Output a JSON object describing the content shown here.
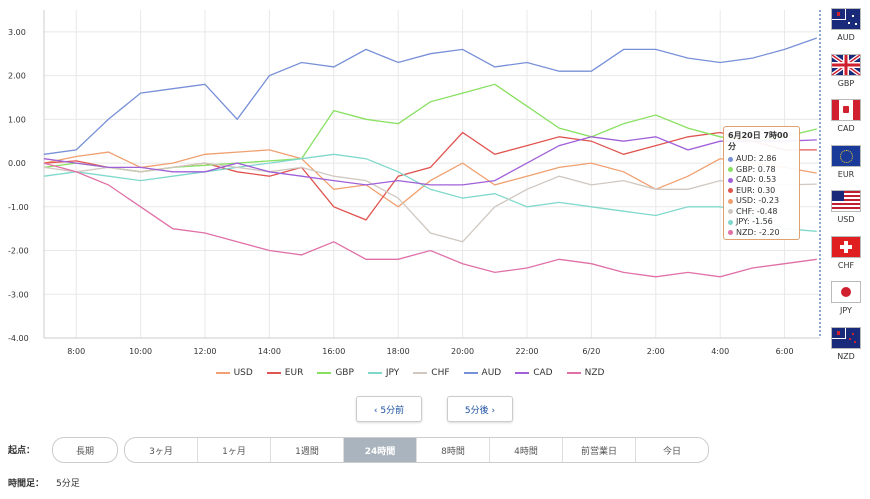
{
  "chart_data": {
    "type": "line",
    "ylim": [
      -4,
      3.5
    ],
    "y_ticks": [
      "3.00",
      "2.00",
      "1.00",
      "0.00",
      "-1.00",
      "-2.00",
      "-3.00",
      "-4.00"
    ],
    "y_tick_values": [
      3,
      2,
      1,
      0,
      -1,
      -2,
      -3,
      -4
    ],
    "x_ticks": [
      "8:00",
      "10:00",
      "12:00",
      "14:00",
      "16:00",
      "18:00",
      "20:00",
      "22:00",
      "6/20",
      "2:00",
      "4:00",
      "6:00"
    ],
    "x_tick_hours": [
      1,
      3,
      5,
      7,
      9,
      11,
      13,
      15,
      17,
      19,
      21,
      23
    ],
    "x_range_hours": [
      0,
      24.1
    ],
    "grid": true,
    "legend_position": "bottom",
    "series": [
      {
        "name": "USD",
        "color": "#f0a070",
        "x": [
          0,
          1,
          2,
          3,
          4,
          5,
          6,
          7,
          8,
          9,
          10,
          11,
          12,
          13,
          14,
          15,
          16,
          17,
          18,
          19,
          20,
          21,
          22,
          23,
          24
        ],
        "values": [
          0.0,
          0.15,
          0.25,
          -0.1,
          0.0,
          0.2,
          0.25,
          0.3,
          0.1,
          -0.6,
          -0.5,
          -1.0,
          -0.4,
          0.0,
          -0.5,
          -0.3,
          -0.1,
          0.0,
          -0.2,
          -0.6,
          -0.3,
          0.1,
          0.0,
          -0.1,
          -0.23
        ]
      },
      {
        "name": "EUR",
        "color": "#e05550",
        "x": [
          0,
          1,
          2,
          3,
          4,
          5,
          6,
          7,
          8,
          9,
          10,
          11,
          12,
          13,
          14,
          15,
          16,
          17,
          18,
          19,
          20,
          21,
          22,
          23,
          24
        ],
        "values": [
          0.0,
          0.05,
          -0.1,
          -0.2,
          -0.1,
          0.0,
          -0.2,
          -0.3,
          -0.1,
          -1.0,
          -1.3,
          -0.3,
          -0.1,
          0.7,
          0.2,
          0.4,
          0.6,
          0.5,
          0.2,
          0.4,
          0.6,
          0.7,
          0.5,
          0.3,
          0.3
        ]
      },
      {
        "name": "GBP",
        "color": "#88e060",
        "x": [
          0,
          1,
          2,
          3,
          4,
          5,
          6,
          7,
          8,
          9,
          10,
          11,
          12,
          13,
          14,
          15,
          16,
          17,
          18,
          19,
          20,
          21,
          22,
          23,
          24
        ],
        "values": [
          -0.1,
          0.0,
          -0.1,
          -0.2,
          -0.1,
          -0.05,
          0.0,
          0.05,
          0.1,
          1.2,
          1.0,
          0.9,
          1.4,
          1.6,
          1.8,
          1.3,
          0.8,
          0.6,
          0.9,
          1.1,
          0.8,
          0.6,
          0.5,
          0.6,
          0.78
        ]
      },
      {
        "name": "JPY",
        "color": "#80d8cc",
        "x": [
          0,
          1,
          2,
          3,
          4,
          5,
          6,
          7,
          8,
          9,
          10,
          11,
          12,
          13,
          14,
          15,
          16,
          17,
          18,
          19,
          20,
          21,
          22,
          23,
          24
        ],
        "values": [
          -0.3,
          -0.2,
          -0.3,
          -0.4,
          -0.3,
          -0.2,
          -0.1,
          0.0,
          0.1,
          0.2,
          0.1,
          -0.2,
          -0.6,
          -0.8,
          -0.7,
          -1.0,
          -0.9,
          -1.0,
          -1.1,
          -1.2,
          -1.0,
          -1.0,
          -1.2,
          -1.5,
          -1.56
        ]
      },
      {
        "name": "CHF",
        "color": "#d0c8c0",
        "x": [
          0,
          1,
          2,
          3,
          4,
          5,
          6,
          7,
          8,
          9,
          10,
          11,
          12,
          13,
          14,
          15,
          16,
          17,
          18,
          19,
          20,
          21,
          22,
          23,
          24
        ],
        "values": [
          -0.1,
          -0.2,
          -0.1,
          -0.2,
          -0.1,
          0.0,
          -0.1,
          -0.2,
          -0.1,
          -0.3,
          -0.4,
          -0.8,
          -1.6,
          -1.8,
          -1.0,
          -0.6,
          -0.3,
          -0.5,
          -0.4,
          -0.6,
          -0.6,
          -0.4,
          -0.5,
          -0.5,
          -0.48
        ]
      },
      {
        "name": "AUD",
        "color": "#7890d8",
        "x": [
          0,
          1,
          2,
          3,
          4,
          5,
          6,
          7,
          8,
          9,
          10,
          11,
          12,
          13,
          14,
          15,
          16,
          17,
          18,
          19,
          20,
          21,
          22,
          23,
          24
        ],
        "values": [
          0.2,
          0.3,
          1.0,
          1.6,
          1.7,
          1.8,
          1.0,
          2.0,
          2.3,
          2.2,
          2.6,
          2.3,
          2.5,
          2.6,
          2.2,
          2.3,
          2.1,
          2.1,
          2.6,
          2.6,
          2.4,
          2.3,
          2.4,
          2.6,
          2.86
        ]
      },
      {
        "name": "CAD",
        "color": "#a060d8",
        "x": [
          0,
          1,
          2,
          3,
          4,
          5,
          6,
          7,
          8,
          9,
          10,
          11,
          12,
          13,
          14,
          15,
          16,
          17,
          18,
          19,
          20,
          21,
          22,
          23,
          24
        ],
        "values": [
          0.1,
          0.0,
          -0.1,
          -0.1,
          -0.2,
          -0.2,
          0.0,
          -0.2,
          -0.3,
          -0.4,
          -0.5,
          -0.4,
          -0.5,
          -0.5,
          -0.4,
          0.0,
          0.4,
          0.6,
          0.5,
          0.6,
          0.3,
          0.5,
          0.5,
          0.5,
          0.53
        ]
      },
      {
        "name": "NZD",
        "color": "#e070a8",
        "x": [
          0,
          1,
          2,
          3,
          4,
          5,
          6,
          7,
          8,
          9,
          10,
          11,
          12,
          13,
          14,
          15,
          16,
          17,
          18,
          19,
          20,
          21,
          22,
          23,
          24
        ],
        "values": [
          0.0,
          -0.2,
          -0.5,
          -1.0,
          -1.5,
          -1.6,
          -1.8,
          -2.0,
          -2.1,
          -1.8,
          -2.2,
          -2.2,
          -2.0,
          -2.3,
          -2.5,
          -2.4,
          -2.2,
          -2.3,
          -2.5,
          -2.6,
          -2.5,
          -2.6,
          -2.4,
          -2.3,
          -2.2
        ]
      }
    ]
  },
  "tooltip": {
    "title": "6月20日 7時00分",
    "rows": [
      {
        "text": "AUD: 2.86",
        "color": "#7890d8"
      },
      {
        "text": "GBP: 0.78",
        "color": "#88e060"
      },
      {
        "text": "CAD: 0.53",
        "color": "#a060d8"
      },
      {
        "text": "EUR: 0.30",
        "color": "#e05550"
      },
      {
        "text": "USD: -0.23",
        "color": "#f0a070"
      },
      {
        "text": "CHF: -0.48",
        "color": "#d0c8c0"
      },
      {
        "text": "JPY: -1.56",
        "color": "#80d8cc"
      },
      {
        "text": "NZD: -2.20",
        "color": "#e070a8"
      }
    ]
  },
  "flags": [
    "AUD",
    "GBP",
    "CAD",
    "EUR",
    "USD",
    "CHF",
    "JPY",
    "NZD"
  ],
  "nav": {
    "prev": "‹ 5分前",
    "next": "5分後 ›"
  },
  "start_label": "起点：",
  "long_label": "長期",
  "periods": [
    "3ヶ月",
    "1ヶ月",
    "1週間",
    "24時間",
    "8時間",
    "4時間",
    "前営業日",
    "今日"
  ],
  "active_period": "24時間",
  "interval_label": "時間足：",
  "interval_value": "5分足"
}
